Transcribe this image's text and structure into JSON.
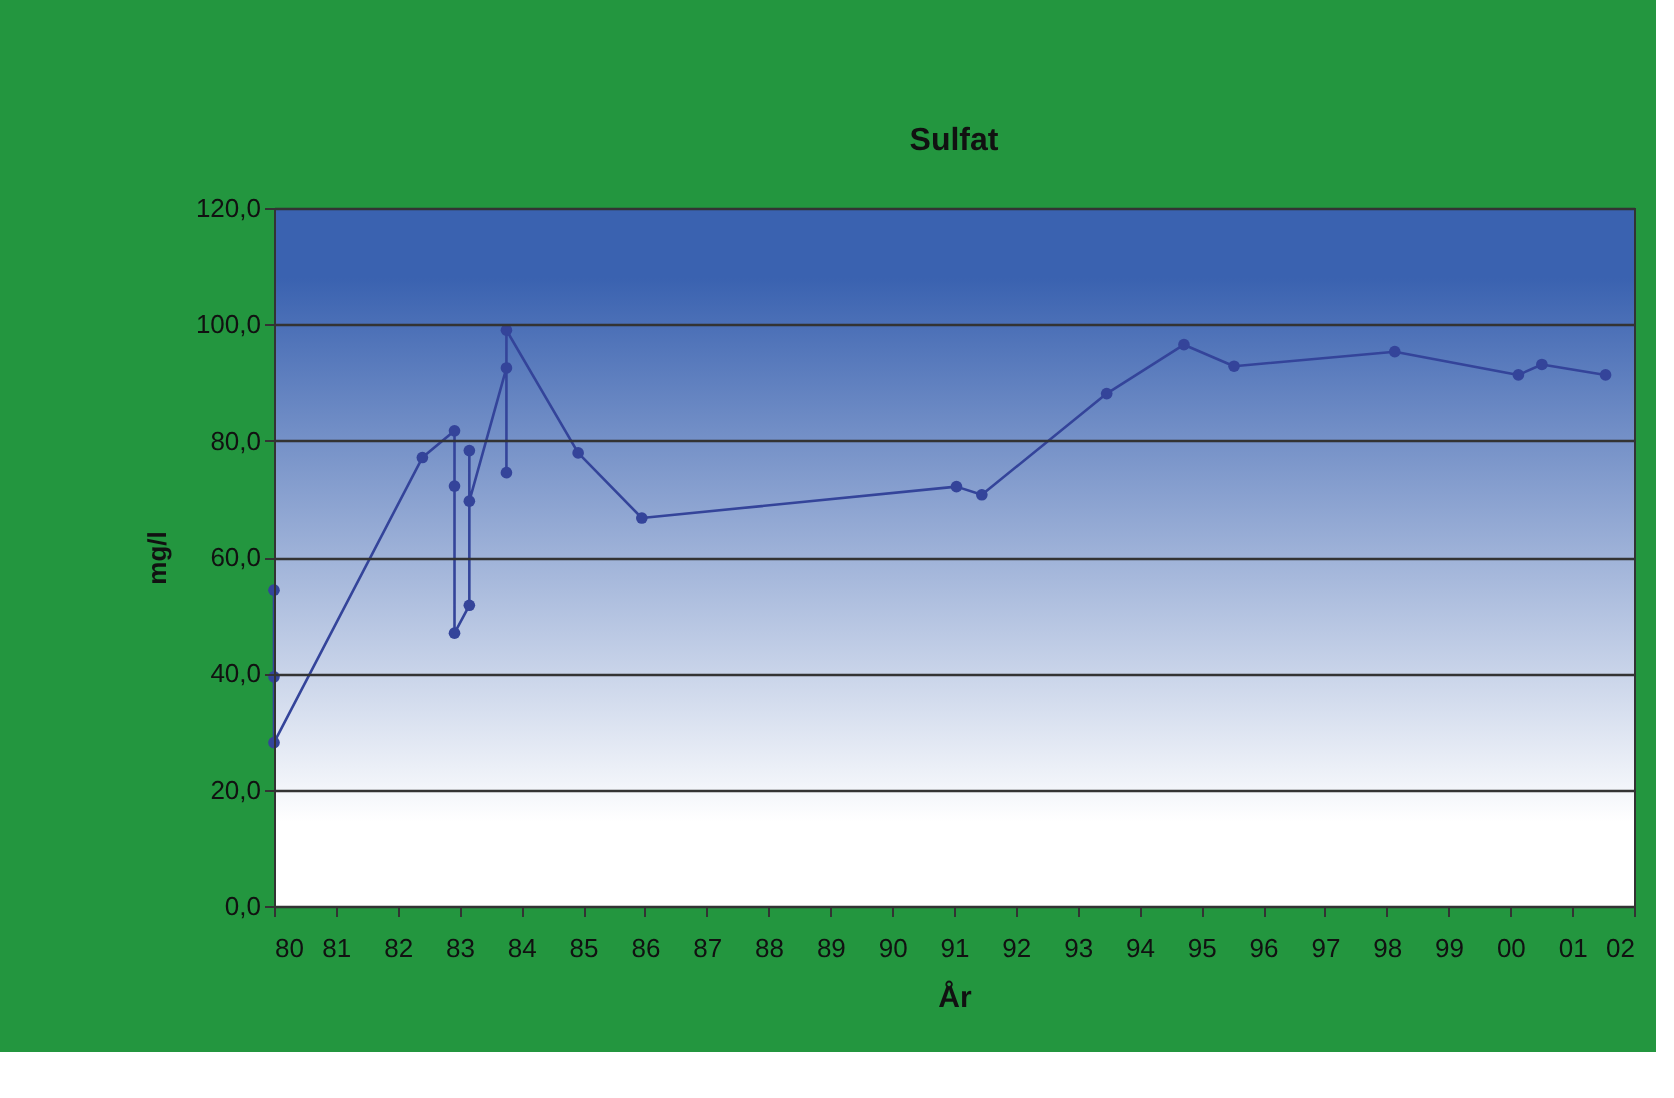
{
  "chart_data": {
    "type": "line",
    "title": "Sulfat",
    "xlabel": "År",
    "ylabel": "mg/l",
    "x": [
      1980.0,
      1980.0,
      1980.0,
      1982.4,
      1982.92,
      1982.92,
      1982.92,
      1983.16,
      1983.16,
      1983.16,
      1983.76,
      1983.76,
      1983.76,
      1984.92,
      1985.95,
      1991.04,
      1991.45,
      1993.47,
      1994.72,
      1995.53,
      1998.13,
      2000.13,
      2000.51,
      2001.54
    ],
    "series": [
      {
        "color": "#34449a",
        "values": [
          54.3,
          39.4,
          28.1,
          77.1,
          81.7,
          72.2,
          46.9,
          51.7,
          78.3,
          69.6,
          92.5,
          74.5,
          99.0,
          77.9,
          66.7,
          72.1,
          70.7,
          88.1,
          96.5,
          92.8,
          95.3,
          91.3,
          93.1,
          91.3
        ]
      }
    ],
    "xlim": [
      1980,
      2002
    ],
    "xticks": [
      {
        "value": 1980,
        "label": "80"
      },
      {
        "value": 1981,
        "label": "81"
      },
      {
        "value": 1982,
        "label": "82"
      },
      {
        "value": 1983,
        "label": "83"
      },
      {
        "value": 1984,
        "label": "84"
      },
      {
        "value": 1985,
        "label": "85"
      },
      {
        "value": 1986,
        "label": "86"
      },
      {
        "value": 1987,
        "label": "87"
      },
      {
        "value": 1988,
        "label": "88"
      },
      {
        "value": 1989,
        "label": "89"
      },
      {
        "value": 1990,
        "label": "90"
      },
      {
        "value": 1991,
        "label": "91"
      },
      {
        "value": 1992,
        "label": "92"
      },
      {
        "value": 1993,
        "label": "93"
      },
      {
        "value": 1994,
        "label": "94"
      },
      {
        "value": 1995,
        "label": "95"
      },
      {
        "value": 1996,
        "label": "96"
      },
      {
        "value": 1997,
        "label": "97"
      },
      {
        "value": 1998,
        "label": "98"
      },
      {
        "value": 1999,
        "label": "99"
      },
      {
        "value": 2000,
        "label": "00"
      },
      {
        "value": 2001,
        "label": "01"
      },
      {
        "value": 2002,
        "label": "02"
      }
    ],
    "ylim": [
      0,
      120
    ],
    "yticks": [
      {
        "value": 0,
        "label": "0,0"
      },
      {
        "value": 20,
        "label": "20,0"
      },
      {
        "value": 40,
        "label": "40,0"
      },
      {
        "value": 60,
        "label": "60,0"
      },
      {
        "value": 80,
        "label": "80,0"
      },
      {
        "value": 100,
        "label": "100,0"
      },
      {
        "value": 120,
        "label": "120,0"
      }
    ],
    "grid": "y",
    "marker": "circle",
    "line_style": "solid"
  }
}
